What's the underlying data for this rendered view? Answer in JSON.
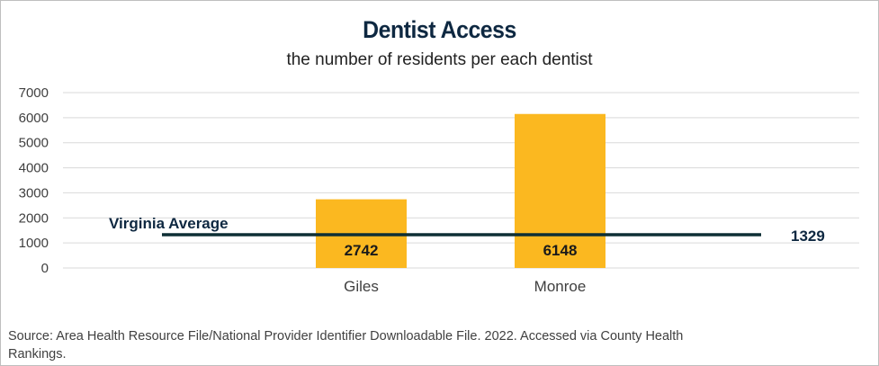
{
  "chart_data": {
    "type": "bar",
    "title": "Dentist Access",
    "subtitle": "the number of residents per each dentist",
    "categories": [
      "Giles",
      "Monroe"
    ],
    "values": [
      2742,
      6148
    ],
    "value_labels": [
      "2742",
      "6148"
    ],
    "ylim": [
      0,
      7000
    ],
    "yticks": [
      0,
      1000,
      2000,
      3000,
      4000,
      5000,
      6000,
      7000
    ],
    "grid": true,
    "bar_color": "#fbb820",
    "reference_line": {
      "name": "Virginia Average",
      "value": 1329,
      "value_label": "1329",
      "color": "#0e2f35"
    },
    "xlabel": "",
    "ylabel": ""
  },
  "footer": {
    "source": "Source:  Area Health Resource File/National Provider Identifier Downloadable File. 2022. Accessed via County Health Rankings."
  },
  "colors": {
    "title": "#0e2841",
    "grid": "#d9d9d9"
  }
}
